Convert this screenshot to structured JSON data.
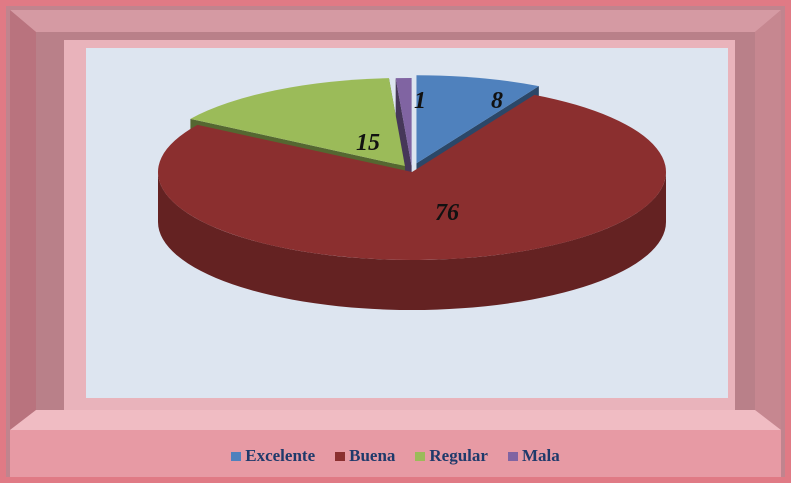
{
  "chart_data": {
    "type": "pie",
    "style": "3d-exploded",
    "title": "",
    "categories": [
      "Excelente",
      "Buena",
      "Regular",
      "Mala"
    ],
    "values": [
      8,
      76,
      15,
      1
    ],
    "data_labels": [
      "8",
      "76",
      "15",
      "1"
    ],
    "colors": [
      "#4f81bd",
      "#8b2f2f",
      "#9bbb59",
      "#8064a2"
    ],
    "legend_position": "bottom"
  },
  "legend": {
    "items": [
      {
        "label": "Excelente",
        "color": "#4f81bd"
      },
      {
        "label": "Buena",
        "color": "#8b2f2f"
      },
      {
        "label": "Regular",
        "color": "#9bbb59"
      },
      {
        "label": "Mala",
        "color": "#8064a2"
      }
    ]
  },
  "colors": {
    "frame_outer": "#b97c87",
    "frame_light": "#f2c4cb",
    "frame_shadow": "#8d4f5a",
    "plot_background": "#dde5f0",
    "label_text": "#111111",
    "legend_text": "#1f3a6b"
  }
}
